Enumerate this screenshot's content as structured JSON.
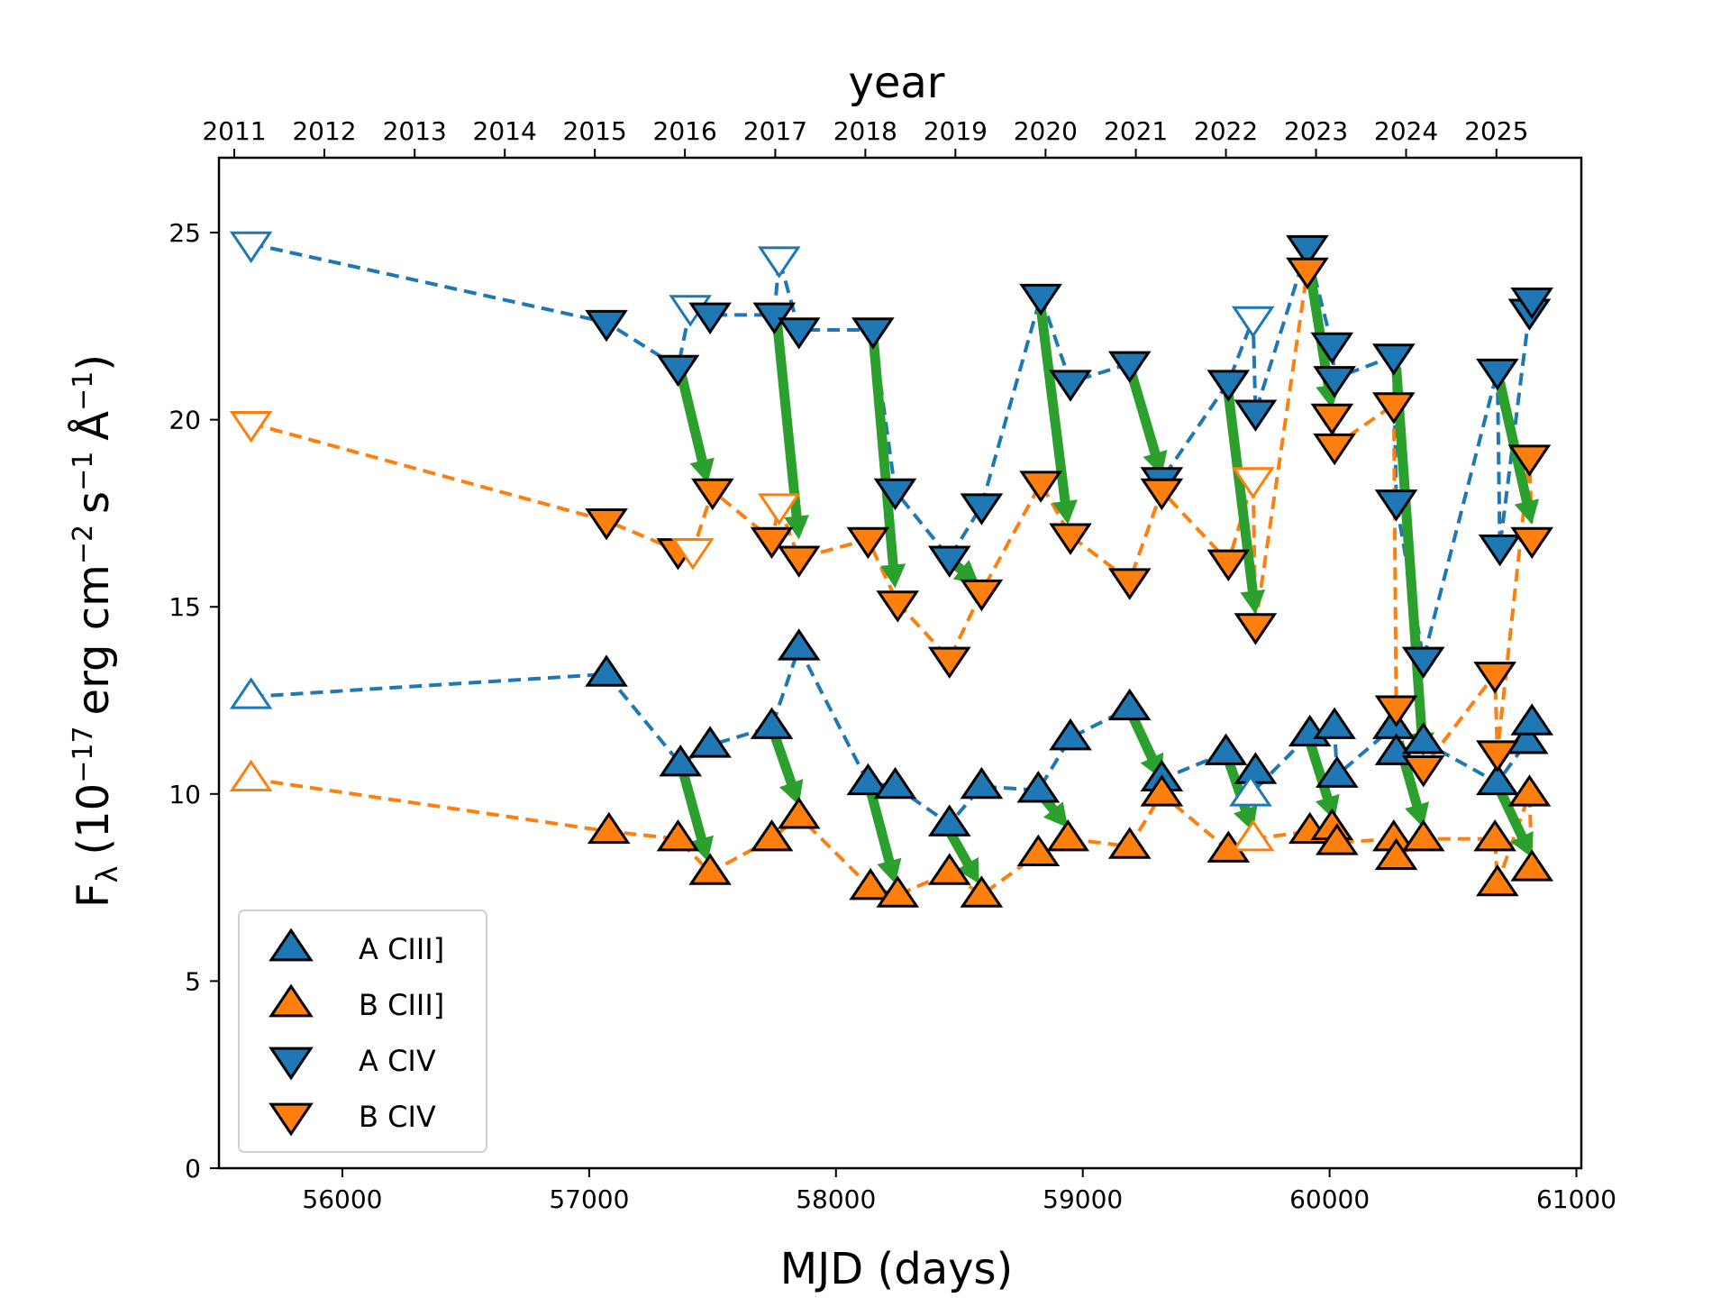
{
  "chart_data": {
    "type": "scatter",
    "xlabel": "MJD (days)",
    "ylabel": "F",
    "ylabel_sub": "λ",
    "ylabel_units": {
      "open": "(10",
      "exp1": "−17",
      "erg_cm": "erg cm",
      "exp2": "−2",
      "s": "s",
      "exp3": "−1",
      "angstrom": "Å",
      "exp4": "−1",
      "close": ")"
    },
    "top_xlabel": "year",
    "xlim": [
      55500,
      61020
    ],
    "ylim": [
      0,
      27
    ],
    "x_ticks": [
      56000,
      57000,
      58000,
      59000,
      60000,
      61000
    ],
    "x_tick_labels": [
      "56000",
      "57000",
      "58000",
      "59000",
      "60000",
      "61000"
    ],
    "y_ticks": [
      0,
      5,
      10,
      15,
      20,
      25
    ],
    "y_tick_labels": [
      "0",
      "5",
      "10",
      "15",
      "20",
      "25"
    ],
    "top_ticks": [
      {
        "x": 55562,
        "label": "2011"
      },
      {
        "x": 55927,
        "label": "2012"
      },
      {
        "x": 56293,
        "label": "2013"
      },
      {
        "x": 56658,
        "label": "2014"
      },
      {
        "x": 57023,
        "label": "2015"
      },
      {
        "x": 57388,
        "label": "2016"
      },
      {
        "x": 57754,
        "label": "2017"
      },
      {
        "x": 58119,
        "label": "2018"
      },
      {
        "x": 58484,
        "label": "2019"
      },
      {
        "x": 58849,
        "label": "2020"
      },
      {
        "x": 59215,
        "label": "2021"
      },
      {
        "x": 59580,
        "label": "2022"
      },
      {
        "x": 59945,
        "label": "2023"
      },
      {
        "x": 60310,
        "label": "2024"
      },
      {
        "x": 60676,
        "label": "2025"
      }
    ],
    "colors": {
      "A": "#1f77b4",
      "B": "#ff7f0e",
      "arrow": "#2ca02c"
    },
    "series": [
      {
        "name": "A CIII]",
        "color": "#1f77b4",
        "marker": "triangle-up",
        "points": [
          {
            "x": 55630,
            "y": 12.6,
            "open": true
          },
          {
            "x": 57070,
            "y": 13.2
          },
          {
            "x": 57370,
            "y": 10.8
          },
          {
            "x": 57490,
            "y": 11.3
          },
          {
            "x": 57740,
            "y": 11.8
          },
          {
            "x": 57850,
            "y": 13.9
          },
          {
            "x": 58130,
            "y": 10.3
          },
          {
            "x": 58240,
            "y": 10.2
          },
          {
            "x": 58460,
            "y": 9.2
          },
          {
            "x": 58590,
            "y": 10.2
          },
          {
            "x": 58820,
            "y": 10.1
          },
          {
            "x": 58950,
            "y": 11.5
          },
          {
            "x": 59190,
            "y": 12.3
          },
          {
            "x": 59320,
            "y": 10.4
          },
          {
            "x": 59580,
            "y": 11.1
          },
          {
            "x": 59700,
            "y": 10.6
          },
          {
            "x": 59680,
            "y": 10.0,
            "open": true
          },
          {
            "x": 59920,
            "y": 11.6
          },
          {
            "x": 60020,
            "y": 11.8
          },
          {
            "x": 60030,
            "y": 10.5
          },
          {
            "x": 60260,
            "y": 11.8
          },
          {
            "x": 60270,
            "y": 11.1
          },
          {
            "x": 60380,
            "y": 11.4
          },
          {
            "x": 60680,
            "y": 10.3
          },
          {
            "x": 60800,
            "y": 11.4
          },
          {
            "x": 60820,
            "y": 11.9
          }
        ]
      },
      {
        "name": "B CIII]",
        "color": "#ff7f0e",
        "marker": "triangle-up",
        "points": [
          {
            "x": 55630,
            "y": 10.4,
            "open": true
          },
          {
            "x": 57080,
            "y": 9.0
          },
          {
            "x": 57360,
            "y": 8.8
          },
          {
            "x": 57490,
            "y": 7.9
          },
          {
            "x": 57740,
            "y": 8.8
          },
          {
            "x": 57850,
            "y": 9.4
          },
          {
            "x": 58140,
            "y": 7.5
          },
          {
            "x": 58250,
            "y": 7.3
          },
          {
            "x": 58460,
            "y": 7.9
          },
          {
            "x": 58590,
            "y": 7.3
          },
          {
            "x": 58820,
            "y": 8.4
          },
          {
            "x": 58940,
            "y": 8.8
          },
          {
            "x": 59190,
            "y": 8.6
          },
          {
            "x": 59320,
            "y": 10.0
          },
          {
            "x": 59590,
            "y": 8.5
          },
          {
            "x": 59690,
            "y": 8.8,
            "open": true
          },
          {
            "x": 59920,
            "y": 9.0
          },
          {
            "x": 60010,
            "y": 9.1
          },
          {
            "x": 60030,
            "y": 8.7
          },
          {
            "x": 60260,
            "y": 8.8
          },
          {
            "x": 60270,
            "y": 8.3
          },
          {
            "x": 60380,
            "y": 8.8
          },
          {
            "x": 60670,
            "y": 8.8
          },
          {
            "x": 60680,
            "y": 7.6
          },
          {
            "x": 60810,
            "y": 10.0
          },
          {
            "x": 60820,
            "y": 8.0
          }
        ]
      },
      {
        "name": "A CIV",
        "color": "#1f77b4",
        "marker": "triangle-down",
        "points": [
          {
            "x": 55630,
            "y": 24.7,
            "open": true
          },
          {
            "x": 57070,
            "y": 22.6
          },
          {
            "x": 57360,
            "y": 21.4
          },
          {
            "x": 57410,
            "y": 23.0,
            "open": true
          },
          {
            "x": 57490,
            "y": 22.8
          },
          {
            "x": 57750,
            "y": 22.8
          },
          {
            "x": 57770,
            "y": 24.3,
            "open": true
          },
          {
            "x": 57850,
            "y": 22.4
          },
          {
            "x": 58150,
            "y": 22.4
          },
          {
            "x": 58240,
            "y": 18.1
          },
          {
            "x": 58460,
            "y": 16.3
          },
          {
            "x": 58590,
            "y": 17.7
          },
          {
            "x": 58830,
            "y": 23.3
          },
          {
            "x": 58950,
            "y": 21.0
          },
          {
            "x": 59190,
            "y": 21.5
          },
          {
            "x": 59320,
            "y": 18.4
          },
          {
            "x": 59590,
            "y": 21.0
          },
          {
            "x": 59690,
            "y": 22.7,
            "open": true
          },
          {
            "x": 59700,
            "y": 20.2
          },
          {
            "x": 59910,
            "y": 24.6
          },
          {
            "x": 60010,
            "y": 22.0
          },
          {
            "x": 60020,
            "y": 21.1
          },
          {
            "x": 60260,
            "y": 21.7
          },
          {
            "x": 60270,
            "y": 17.8
          },
          {
            "x": 60380,
            "y": 13.6
          },
          {
            "x": 60680,
            "y": 21.3
          },
          {
            "x": 60690,
            "y": 16.6
          },
          {
            "x": 60810,
            "y": 22.9
          },
          {
            "x": 60820,
            "y": 23.2
          }
        ]
      },
      {
        "name": "B CIV",
        "color": "#ff7f0e",
        "marker": "triangle-down",
        "points": [
          {
            "x": 55630,
            "y": 19.9,
            "open": true
          },
          {
            "x": 57070,
            "y": 17.3
          },
          {
            "x": 57360,
            "y": 16.5
          },
          {
            "x": 57420,
            "y": 16.5,
            "open": true
          },
          {
            "x": 57500,
            "y": 18.1
          },
          {
            "x": 57740,
            "y": 16.8
          },
          {
            "x": 57770,
            "y": 17.7,
            "open": true
          },
          {
            "x": 57850,
            "y": 16.3
          },
          {
            "x": 58130,
            "y": 16.8
          },
          {
            "x": 58250,
            "y": 15.1
          },
          {
            "x": 58460,
            "y": 13.6
          },
          {
            "x": 58590,
            "y": 15.4
          },
          {
            "x": 58830,
            "y": 18.3
          },
          {
            "x": 58950,
            "y": 16.9
          },
          {
            "x": 59190,
            "y": 15.7
          },
          {
            "x": 59320,
            "y": 18.1
          },
          {
            "x": 59590,
            "y": 16.2
          },
          {
            "x": 59690,
            "y": 18.4,
            "open": true
          },
          {
            "x": 59700,
            "y": 14.5
          },
          {
            "x": 59910,
            "y": 24.0
          },
          {
            "x": 60010,
            "y": 20.1
          },
          {
            "x": 60020,
            "y": 19.3
          },
          {
            "x": 60260,
            "y": 20.4
          },
          {
            "x": 60270,
            "y": 12.3
          },
          {
            "x": 60380,
            "y": 10.7
          },
          {
            "x": 60670,
            "y": 13.2
          },
          {
            "x": 60680,
            "y": 11.1
          },
          {
            "x": 60810,
            "y": 19.0
          },
          {
            "x": 60820,
            "y": 16.8
          }
        ]
      }
    ],
    "arrows": [
      {
        "x1": 57370,
        "y1": 21.3,
        "x2": 57480,
        "y2": 18.3
      },
      {
        "x1": 57760,
        "y1": 22.7,
        "x2": 57850,
        "y2": 16.8
      },
      {
        "x1": 58150,
        "y1": 22.3,
        "x2": 58240,
        "y2": 15.5
      },
      {
        "x1": 58470,
        "y1": 16.2,
        "x2": 58580,
        "y2": 15.6
      },
      {
        "x1": 58830,
        "y1": 23.0,
        "x2": 58940,
        "y2": 17.2
      },
      {
        "x1": 59195,
        "y1": 21.3,
        "x2": 59320,
        "y2": 18.5
      },
      {
        "x1": 59590,
        "y1": 20.7,
        "x2": 59700,
        "y2": 14.8
      },
      {
        "x1": 59910,
        "y1": 24.4,
        "x2": 60010,
        "y2": 20.3
      },
      {
        "x1": 60270,
        "y1": 21.4,
        "x2": 60380,
        "y2": 11.0
      },
      {
        "x1": 60690,
        "y1": 21.0,
        "x2": 60820,
        "y2": 17.2
      },
      {
        "x1": 57380,
        "y1": 10.6,
        "x2": 57480,
        "y2": 8.2
      },
      {
        "x1": 57750,
        "y1": 11.6,
        "x2": 57850,
        "y2": 9.7
      },
      {
        "x1": 58140,
        "y1": 10.1,
        "x2": 58240,
        "y2": 7.6
      },
      {
        "x1": 58460,
        "y1": 9.0,
        "x2": 58580,
        "y2": 7.6
      },
      {
        "x1": 58830,
        "y1": 10.0,
        "x2": 58940,
        "y2": 9.1
      },
      {
        "x1": 59200,
        "y1": 12.1,
        "x2": 59320,
        "y2": 10.4
      },
      {
        "x1": 59590,
        "y1": 10.9,
        "x2": 59690,
        "y2": 9.0
      },
      {
        "x1": 59920,
        "y1": 11.4,
        "x2": 60020,
        "y2": 9.3
      },
      {
        "x1": 60280,
        "y1": 11.4,
        "x2": 60380,
        "y2": 9.1
      },
      {
        "x1": 60690,
        "y1": 10.1,
        "x2": 60820,
        "y2": 8.3
      }
    ],
    "legend": {
      "position": "lower-left",
      "entries": [
        {
          "label": "A CIII]",
          "color": "#1f77b4",
          "marker": "triangle-up"
        },
        {
          "label": "B CIII]",
          "color": "#ff7f0e",
          "marker": "triangle-up"
        },
        {
          "label": "A CIV",
          "color": "#1f77b4",
          "marker": "triangle-down"
        },
        {
          "label": "B CIV",
          "color": "#ff7f0e",
          "marker": "triangle-down"
        }
      ]
    }
  }
}
